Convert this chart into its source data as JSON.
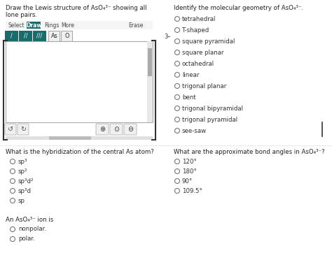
{
  "bg_color": "#ffffff",
  "left_panel": {
    "title_line1": "Draw the Lewis structure of AsO₄³⁻ showing all",
    "title_line2": "lone pairs.",
    "toolbar": [
      "Select",
      "Draw",
      "Rings",
      "More",
      "Erase"
    ],
    "bond_buttons": [
      "/",
      "//",
      "///",
      "As",
      "O"
    ],
    "charge_label": "3–",
    "teal_color": "#1a6b6b"
  },
  "right_panel": {
    "title": "Identify the molecular geometry of AsO₄³⁻.",
    "options": [
      "tetrahedral",
      "T-shaped",
      "square pyramidal",
      "square planar",
      "octahedral",
      "linear",
      "trigonal planar",
      "bent",
      "trigonal bipyramidal",
      "trigonal pyramidal",
      "see-saw"
    ]
  },
  "bottom_left": {
    "title": "What is the hybridization of the central As atom?",
    "options": [
      "sp³",
      "sp²",
      "sp³d²",
      "sp³d",
      "sp"
    ]
  },
  "bottom_right": {
    "title": "What are the approximate bond angles in AsO₄³⁻?",
    "options": [
      "120°",
      "180°",
      "90°",
      "109.5°"
    ]
  },
  "bottom_last": {
    "title": "An AsO₄³⁻ ion is",
    "options": [
      "nonpolar.",
      "polar."
    ]
  }
}
